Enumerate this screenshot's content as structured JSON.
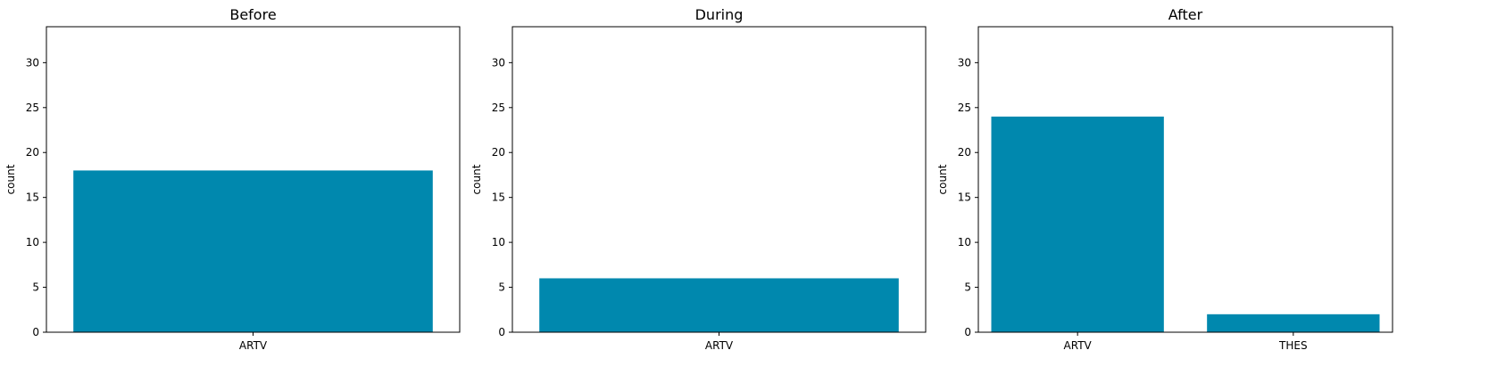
{
  "bar_color": "#0088AE",
  "chart_data": [
    {
      "type": "bar",
      "title": "Before",
      "categories": [
        "ARTV"
      ],
      "values": [
        18
      ],
      "xlabel": "",
      "ylabel": "count",
      "ylim": [
        0,
        34
      ],
      "yticks": [
        0,
        5,
        10,
        15,
        20,
        25,
        30
      ],
      "grid": false
    },
    {
      "type": "bar",
      "title": "During",
      "categories": [
        "ARTV"
      ],
      "values": [
        6
      ],
      "xlabel": "",
      "ylabel": "count",
      "ylim": [
        0,
        34
      ],
      "yticks": [
        0,
        5,
        10,
        15,
        20,
        25,
        30
      ],
      "grid": false
    },
    {
      "type": "bar",
      "title": "After",
      "categories": [
        "ARTV",
        "THES"
      ],
      "values": [
        24,
        2
      ],
      "xlabel": "",
      "ylabel": "count",
      "ylim": [
        0,
        34
      ],
      "yticks": [
        0,
        5,
        10,
        15,
        20,
        25,
        30
      ],
      "grid": false
    }
  ]
}
